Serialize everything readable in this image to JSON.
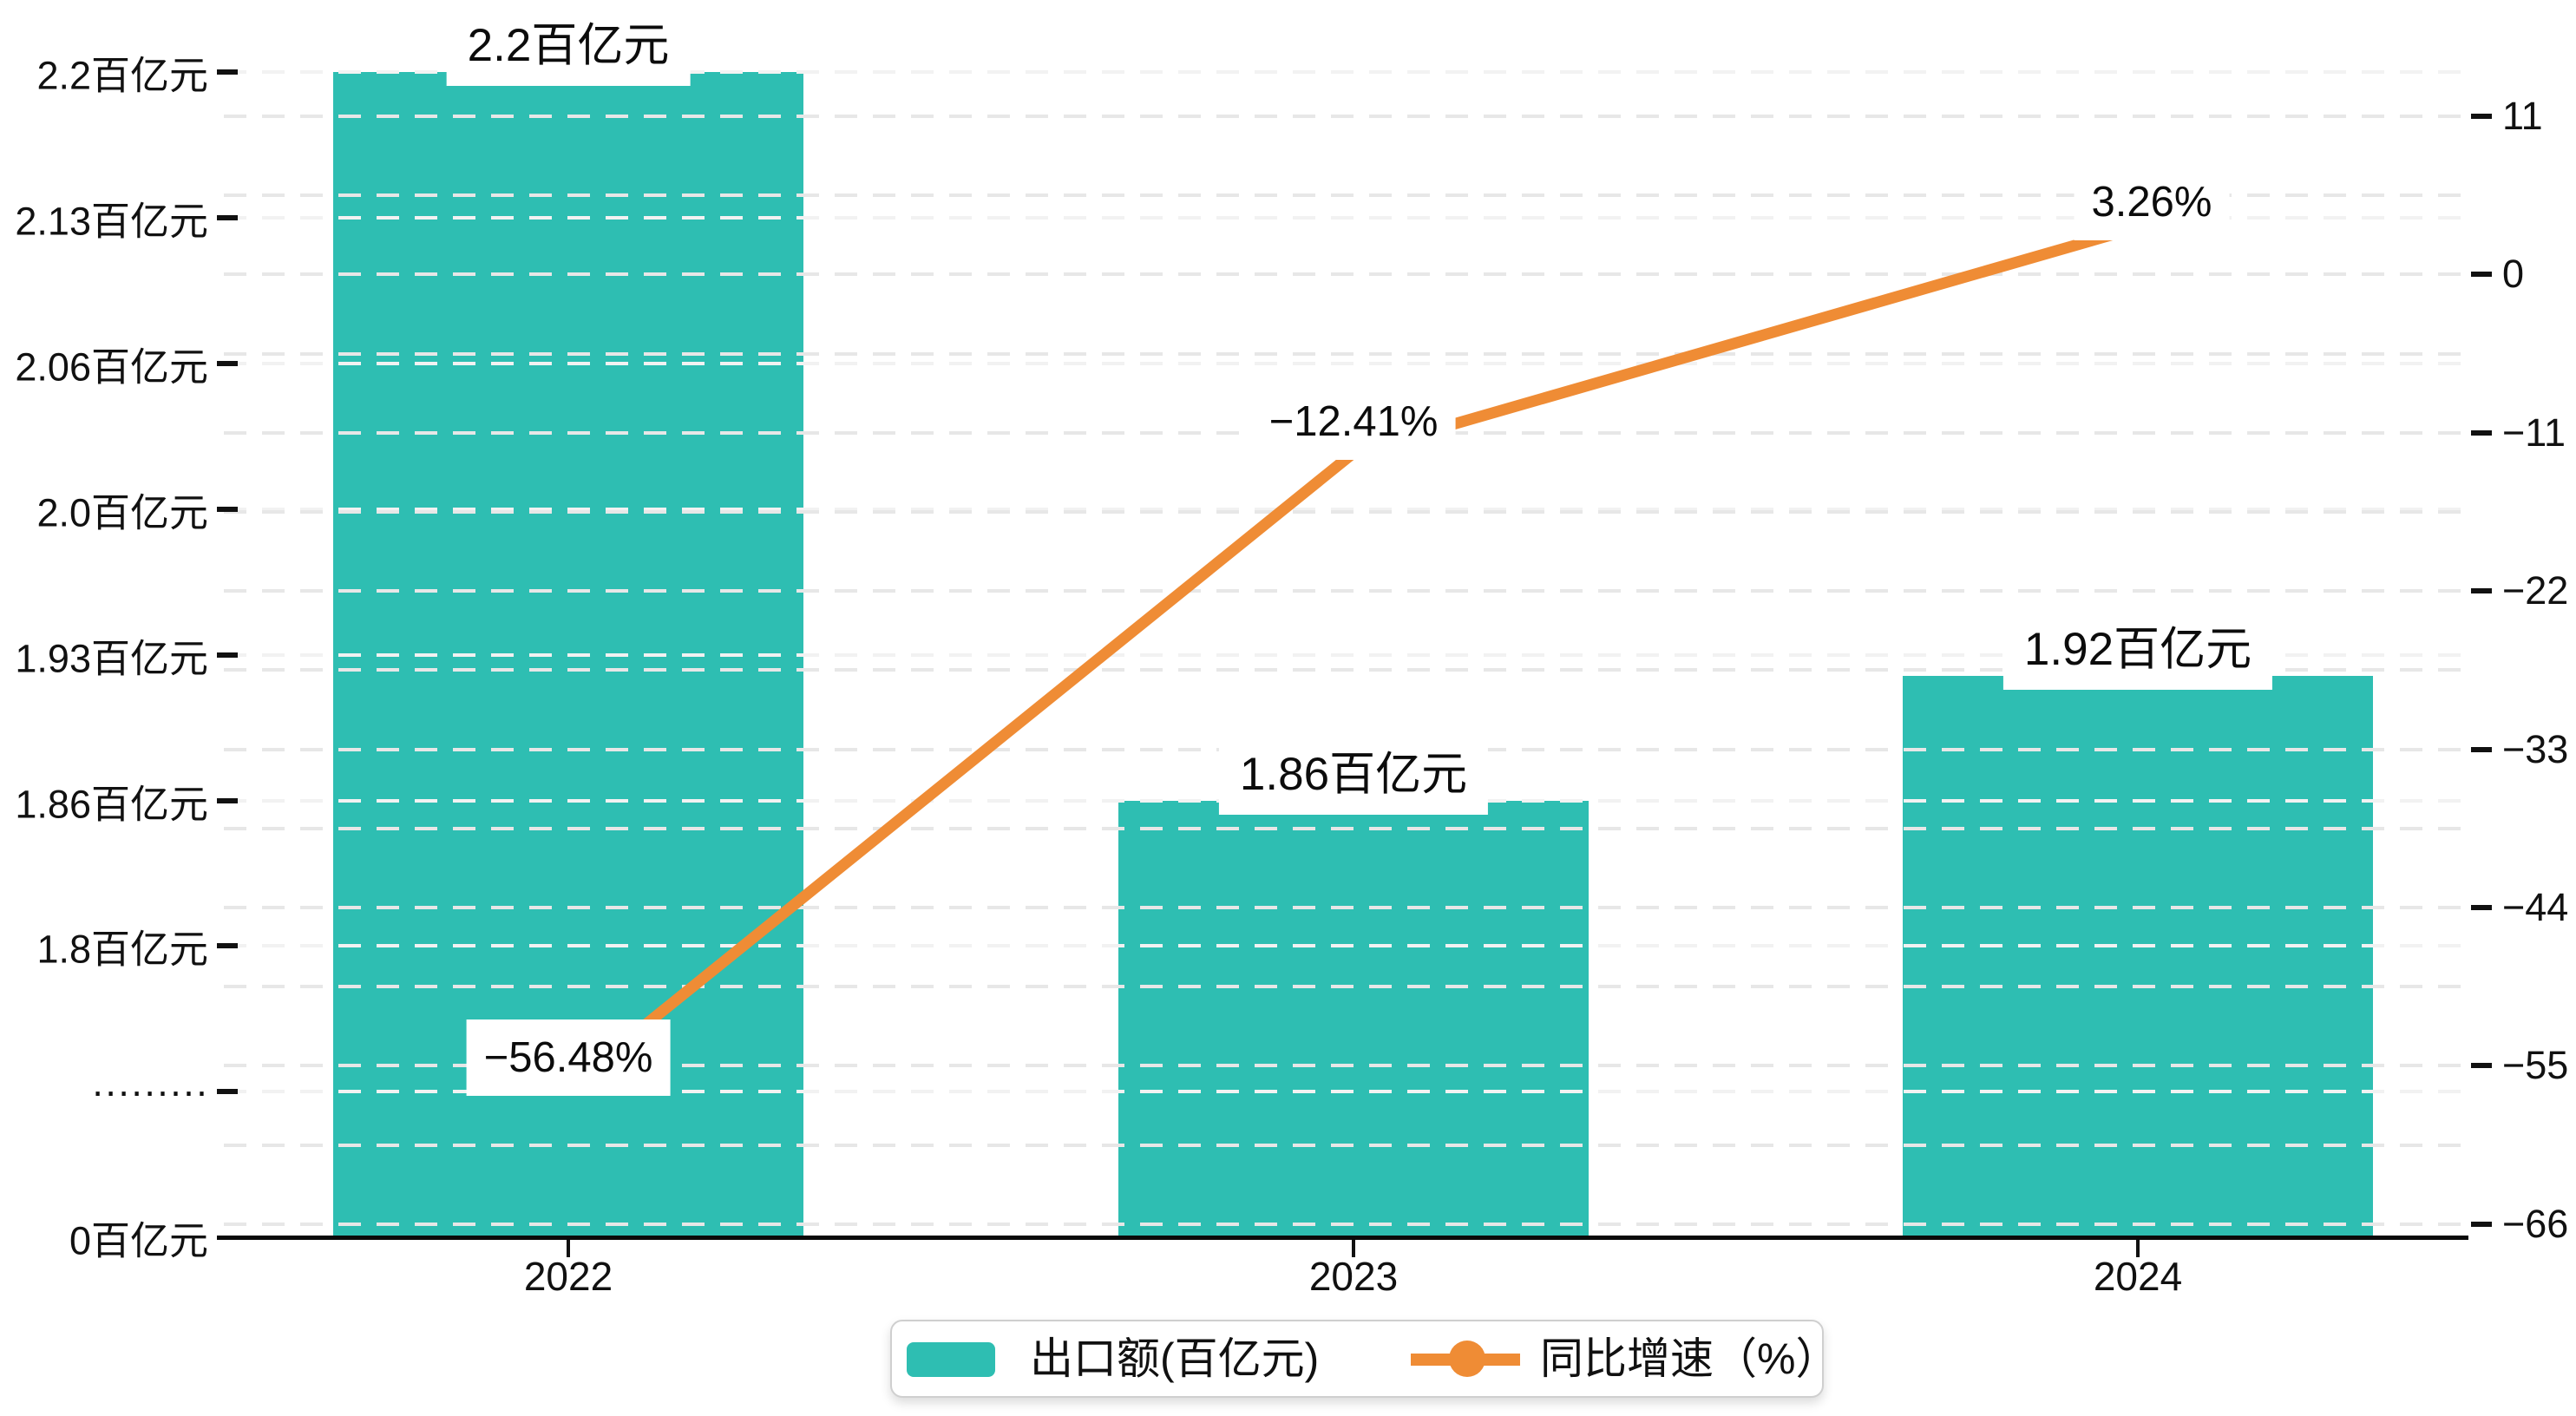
{
  "chart_data": {
    "type": "bar+line",
    "categories": [
      "2022",
      "2023",
      "2024"
    ],
    "series": [
      {
        "name": "出口额(百亿元)",
        "type": "bar",
        "axis": "left",
        "values": [
          2.2,
          1.86,
          1.92
        ],
        "data_labels": [
          "2.2百亿元",
          "1.86百亿元",
          "1.92百亿元"
        ],
        "color": "#2ebeb2"
      },
      {
        "name": "同比增速（%）",
        "type": "line",
        "axis": "right",
        "values": [
          -56.48,
          -12.41,
          3.26
        ],
        "data_labels": [
          "−56.48%",
          "−12.41%",
          "3.26%"
        ],
        "color": "#ef8c35"
      }
    ],
    "left_axis": {
      "unit": "百亿元",
      "tick_labels": [
        "2.2百亿元",
        "2.13百亿元",
        "2.06百亿元",
        "2.0百亿元",
        "1.93百亿元",
        "1.86百亿元",
        "1.8百亿元",
        "·········",
        "0百亿元"
      ],
      "tick_values": [
        2.2,
        2.13,
        2.06,
        2.0,
        1.93,
        1.86,
        1.8,
        null,
        0
      ],
      "axis_break": true,
      "break_label": "·········"
    },
    "right_axis": {
      "tick_labels": [
        "11",
        "0",
        "−11",
        "−22",
        "−33",
        "−44",
        "−55",
        "−66"
      ],
      "tick_values": [
        11,
        0,
        -11,
        -22,
        -33,
        -44,
        -55,
        -66
      ]
    },
    "grid": "horizontal dashed gridlines",
    "legend_position": "bottom-center",
    "title": "",
    "xlabel": "",
    "ylabel_left": "出口额(百亿元)",
    "ylabel_right": "同比增速（%）"
  },
  "legend": {
    "items": [
      {
        "label": "出口额(百亿元)",
        "swatch": "bar-swatch",
        "color": "#2ebeb2"
      },
      {
        "label": "同比增速（%）",
        "swatch": "line-dot-swatch",
        "color": "#ef8c35"
      }
    ]
  },
  "colors": {
    "bar": "#2ebeb2",
    "line": "#ef8c35",
    "text": "#111111",
    "axis": "#0a0a0a",
    "grid_major": "#e7e7e7",
    "grid_minor": "#f2f2f2",
    "legend_border": "#cfcfcf",
    "background": "#ffffff"
  }
}
